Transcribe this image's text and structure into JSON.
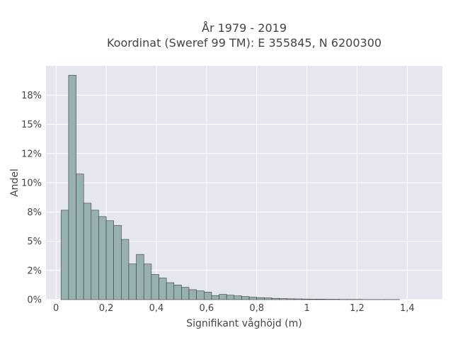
{
  "chart_data": {
    "type": "bar",
    "title_line1": "År 1979 - 2019",
    "title_line2": "Koordinat (Sweref 99 TM): E 355845, N 6200300",
    "xlabel": "Signifikant våghöjd (m)",
    "ylabel": "Andel",
    "xlim": [
      -0.04,
      1.54
    ],
    "ylim": [
      0,
      0.2
    ],
    "x_ticks": [
      0,
      0.2,
      0.4,
      0.6,
      0.8,
      1,
      1.2,
      1.4
    ],
    "x_tick_labels": [
      "0",
      "0,2",
      "0,4",
      "0,6",
      "0,8",
      "1",
      "1,2",
      "1,4"
    ],
    "y_ticks": [
      0,
      0.025,
      0.05,
      0.075,
      0.1,
      0.125,
      0.15,
      0.175
    ],
    "y_tick_labels": [
      "0%",
      "2%",
      "5%",
      "8%",
      "10%",
      "12%",
      "15%",
      "18%"
    ],
    "bin_start": 0.02,
    "bin_width": 0.03,
    "values": [
      0.0765,
      0.192,
      0.1075,
      0.0825,
      0.0765,
      0.071,
      0.0675,
      0.0635,
      0.0515,
      0.0305,
      0.0387,
      0.0305,
      0.0215,
      0.0185,
      0.0145,
      0.0125,
      0.0105,
      0.0085,
      0.0075,
      0.0065,
      0.0035,
      0.0045,
      0.0038,
      0.0032,
      0.0026,
      0.0021,
      0.0017,
      0.0015,
      0.0011,
      0.0009,
      0.0007,
      0.0006,
      0.0005,
      0.0004,
      0.0004,
      0.0003,
      0.0003,
      0.0002,
      0.0002,
      0.0002,
      0.0001,
      0.0001,
      0.0001,
      0.0001,
      0.0001
    ],
    "grid": true,
    "legend": "none",
    "colors": {
      "bar_fill": "#97b1b0",
      "bar_edge": "#3a3a3a",
      "plot_background": "#e5e6f0",
      "grid": "#ffffff",
      "text": "#444444"
    }
  }
}
